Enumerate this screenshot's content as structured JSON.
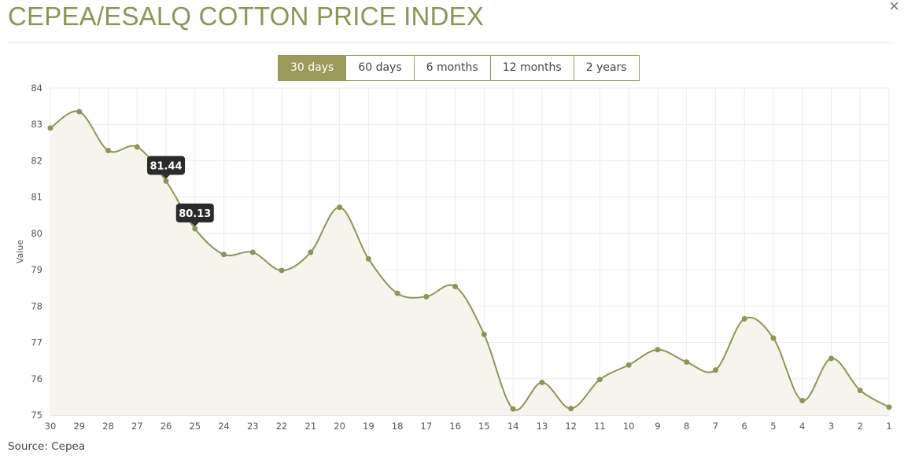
{
  "header": {
    "title": "CEPEA/ESALQ COTTON PRICE INDEX",
    "close_glyph": "×"
  },
  "range_buttons": [
    {
      "label": "30 days",
      "active": true
    },
    {
      "label": "60 days",
      "active": false
    },
    {
      "label": "6 months",
      "active": false
    },
    {
      "label": "12 months",
      "active": false
    },
    {
      "label": "2 years",
      "active": false
    }
  ],
  "footer": {
    "source": "Source: Cepea"
  },
  "colors": {
    "line": "#8f9456",
    "fill": "#f5f5ee",
    "grid": "#ececec",
    "tooltip_bg": "#2b2b2b"
  },
  "chart_data": {
    "type": "line",
    "ylabel": "Value",
    "ylim": [
      75,
      84
    ],
    "yticks": [
      75,
      76,
      77,
      78,
      79,
      80,
      81,
      82,
      83,
      84
    ],
    "categories": [
      "30",
      "29",
      "28",
      "27",
      "26",
      "25",
      "24",
      "23",
      "22",
      "21",
      "20",
      "19",
      "18",
      "17",
      "16",
      "15",
      "14",
      "13",
      "12",
      "11",
      "10",
      "9",
      "8",
      "7",
      "6",
      "5",
      "4",
      "3",
      "2",
      "1"
    ],
    "values": [
      82.9,
      83.35,
      82.28,
      82.38,
      81.44,
      80.13,
      79.42,
      79.48,
      78.98,
      79.48,
      80.72,
      79.3,
      78.35,
      78.26,
      78.54,
      77.22,
      75.17,
      75.9,
      75.18,
      75.98,
      76.38,
      76.8,
      76.46,
      76.24,
      77.65,
      77.12,
      75.4,
      76.56,
      75.68,
      75.22
    ],
    "tooltips": [
      {
        "index": 4,
        "label": "81.44"
      },
      {
        "index": 5,
        "label": "80.13"
      }
    ],
    "grid": true
  }
}
